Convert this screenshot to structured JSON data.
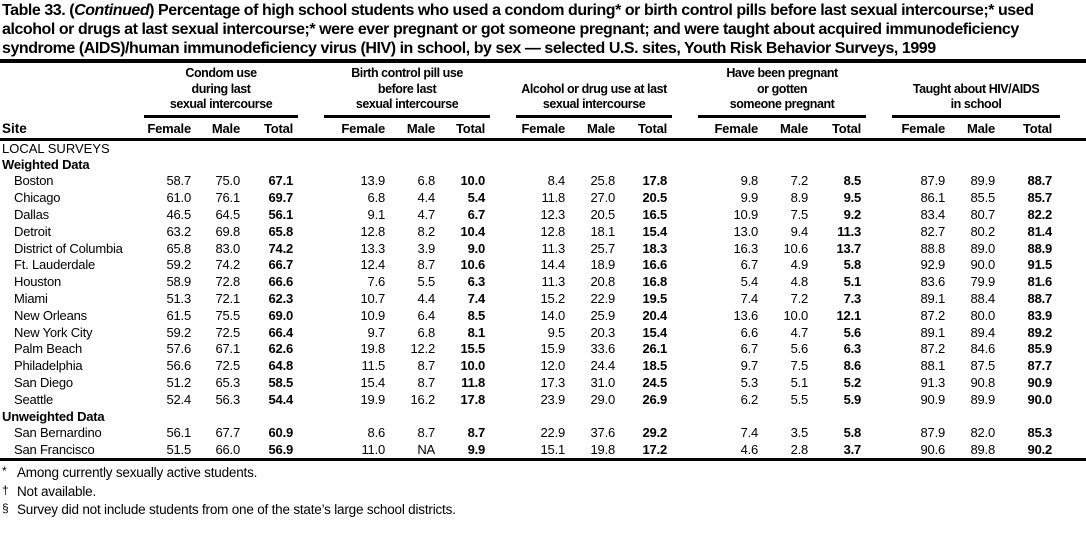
{
  "title": {
    "prefix": "Table 33. (",
    "continued": "Continued",
    "suffix": ") Percentage of high school students who used a condom during* or birth control pills before last sexual intercourse;* used alcohol or drugs at last sexual intercourse;* were ever pregnant or got someone pregnant; and were taught about acquired immunodeficiency syndrome (AIDS)/human immunodeficiency virus (HIV) in school, by sex — selected U.S. sites, Youth Risk Behavior Surveys, 1999"
  },
  "table": {
    "site_header": "Site",
    "groups": [
      {
        "label": "Condom use during last sexual intercourse",
        "lines": [
          "Condom use",
          "during last",
          "sexual intercourse"
        ]
      },
      {
        "label": "Birth control pill use before last sexual intercourse",
        "lines": [
          "Birth control pill use",
          "before last",
          "sexual intercourse"
        ]
      },
      {
        "label": "Alcohol or drug use at last sexual intercourse",
        "lines": [
          "Alcohol or drug use at last",
          "sexual intercourse"
        ]
      },
      {
        "label": "Have been pregnant or gotten someone pregnant",
        "lines": [
          "Have been pregnant",
          "or gotten",
          "someone pregnant"
        ]
      },
      {
        "label": "Taught about HIV/AIDS in school",
        "lines": [
          "Taught about HIV/AIDS",
          "in school"
        ]
      }
    ],
    "sub_headers": [
      "Female",
      "Male",
      "Total"
    ],
    "section_label": "LOCAL SURVEYS",
    "subsections": [
      {
        "label": "Weighted Data",
        "rows": [
          {
            "site": "Boston",
            "values": [
              "58.7",
              "75.0",
              "67.1",
              "13.9",
              "6.8",
              "10.0",
              "8.4",
              "25.8",
              "17.8",
              "9.8",
              "7.2",
              "8.5",
              "87.9",
              "89.9",
              "88.7"
            ]
          },
          {
            "site": "Chicago",
            "values": [
              "61.0",
              "76.1",
              "69.7",
              "6.8",
              "4.4",
              "5.4",
              "11.8",
              "27.0",
              "20.5",
              "9.9",
              "8.9",
              "9.5",
              "86.1",
              "85.5",
              "85.7"
            ]
          },
          {
            "site": "Dallas",
            "values": [
              "46.5",
              "64.5",
              "56.1",
              "9.1",
              "4.7",
              "6.7",
              "12.3",
              "20.5",
              "16.5",
              "10.9",
              "7.5",
              "9.2",
              "83.4",
              "80.7",
              "82.2"
            ]
          },
          {
            "site": "Detroit",
            "values": [
              "63.2",
              "69.8",
              "65.8",
              "12.8",
              "8.2",
              "10.4",
              "12.8",
              "18.1",
              "15.4",
              "13.0",
              "9.4",
              "11.3",
              "82.7",
              "80.2",
              "81.4"
            ]
          },
          {
            "site": "District of Columbia",
            "values": [
              "65.8",
              "83.0",
              "74.2",
              "13.3",
              "3.9",
              "9.0",
              "11.3",
              "25.7",
              "18.3",
              "16.3",
              "10.6",
              "13.7",
              "88.8",
              "89.0",
              "88.9"
            ]
          },
          {
            "site": "Ft. Lauderdale",
            "values": [
              "59.2",
              "74.2",
              "66.7",
              "12.4",
              "8.7",
              "10.6",
              "14.4",
              "18.9",
              "16.6",
              "6.7",
              "4.9",
              "5.8",
              "92.9",
              "90.0",
              "91.5"
            ]
          },
          {
            "site": "Houston",
            "values": [
              "58.9",
              "72.8",
              "66.6",
              "7.6",
              "5.5",
              "6.3",
              "11.3",
              "20.8",
              "16.8",
              "5.4",
              "4.8",
              "5.1",
              "83.6",
              "79.9",
              "81.6"
            ]
          },
          {
            "site": "Miami",
            "values": [
              "51.3",
              "72.1",
              "62.3",
              "10.7",
              "4.4",
              "7.4",
              "15.2",
              "22.9",
              "19.5",
              "7.4",
              "7.2",
              "7.3",
              "89.1",
              "88.4",
              "88.7"
            ]
          },
          {
            "site": "New Orleans",
            "values": [
              "61.5",
              "75.5",
              "69.0",
              "10.9",
              "6.4",
              "8.5",
              "14.0",
              "25.9",
              "20.4",
              "13.6",
              "10.0",
              "12.1",
              "87.2",
              "80.0",
              "83.9"
            ]
          },
          {
            "site": "New York City",
            "values": [
              "59.2",
              "72.5",
              "66.4",
              "9.7",
              "6.8",
              "8.1",
              "9.5",
              "20.3",
              "15.4",
              "6.6",
              "4.7",
              "5.6",
              "89.1",
              "89.4",
              "89.2"
            ]
          },
          {
            "site": "Palm Beach",
            "values": [
              "57.6",
              "67.1",
              "62.6",
              "19.8",
              "12.2",
              "15.5",
              "15.9",
              "33.6",
              "26.1",
              "6.7",
              "5.6",
              "6.3",
              "87.2",
              "84.6",
              "85.9"
            ]
          },
          {
            "site": "Philadelphia",
            "values": [
              "56.6",
              "72.5",
              "64.8",
              "11.5",
              "8.7",
              "10.0",
              "12.0",
              "24.4",
              "18.5",
              "9.7",
              "7.5",
              "8.6",
              "88.1",
              "87.5",
              "87.7"
            ]
          },
          {
            "site": "San Diego",
            "values": [
              "51.2",
              "65.3",
              "58.5",
              "15.4",
              "8.7",
              "11.8",
              "17.3",
              "31.0",
              "24.5",
              "5.3",
              "5.1",
              "5.2",
              "91.3",
              "90.8",
              "90.9"
            ]
          },
          {
            "site": "Seattle",
            "values": [
              "52.4",
              "56.3",
              "54.4",
              "19.9",
              "16.2",
              "17.8",
              "23.9",
              "29.0",
              "26.9",
              "6.2",
              "5.5",
              "5.9",
              "90.9",
              "89.9",
              "90.0"
            ]
          }
        ]
      },
      {
        "label": "Unweighted Data",
        "rows": [
          {
            "site": "San Bernardino",
            "values": [
              "56.1",
              "67.7",
              "60.9",
              "8.6",
              "8.7",
              "8.7",
              "22.9",
              "37.6",
              "29.2",
              "7.4",
              "3.5",
              "5.8",
              "87.9",
              "82.0",
              "85.3"
            ]
          },
          {
            "site": "San Francisco",
            "values": [
              "51.5",
              "66.0",
              "56.9",
              "11.0",
              "NA",
              "9.9",
              "15.1",
              "19.8",
              "17.2",
              "4.6",
              "2.8",
              "3.7",
              "90.6",
              "89.8",
              "90.2"
            ]
          }
        ]
      }
    ]
  },
  "footnotes": [
    {
      "symbol": "*",
      "text": "Among currently sexually active students."
    },
    {
      "symbol": "†",
      "text": "Not available."
    },
    {
      "symbol": "§",
      "text": "Survey did not include students from one of the state’s large school districts."
    }
  ]
}
